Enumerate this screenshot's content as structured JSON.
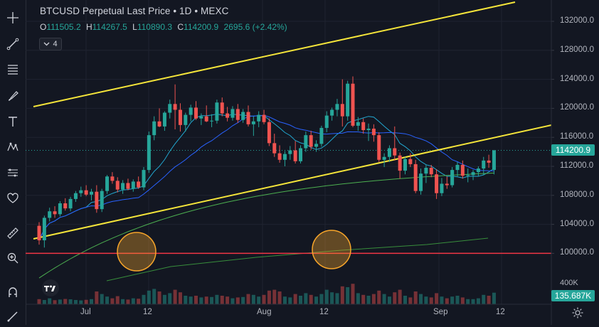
{
  "legend": {
    "title": "BTCUSD Perpetual Last Price • 1D • MEXC",
    "open_key": "O",
    "open": "111505.2",
    "high_key": "H",
    "high": "114267.5",
    "low_key": "L",
    "low": "110890.3",
    "close_key": "C",
    "close": "114200.9",
    "change": "2695.6 (+2.42%)",
    "indicators_count": "4"
  },
  "price_axis": {
    "labels": [
      "132000.0",
      "128000.0",
      "124000.0",
      "120000.0",
      "116000.0",
      "112000.0",
      "108000.0",
      "104000.0",
      "100000.0"
    ],
    "last_price": "114200.9",
    "volume_max": "400K",
    "volume_last": "135.687K"
  },
  "time_axis": {
    "labels": [
      "Jul",
      "12",
      "Aug",
      "12",
      "Sep",
      "12"
    ]
  },
  "toolbar": {
    "icons": [
      "crosshair-icon",
      "trend-line-icon",
      "fib-retracement-icon",
      "brush-icon",
      "text-icon",
      "pattern-icon",
      "prediction-icon",
      "heart-icon",
      "ruler-icon",
      "zoom-in-icon",
      "magnet-icon",
      "lock-icon"
    ]
  },
  "colors": {
    "background": "#131722",
    "up": "#26a69a",
    "down": "#ef5350",
    "channel": "#f5e53a",
    "support": "#f23645",
    "ma_fast": "#22a7d0",
    "ma_mid": "#2962ff",
    "ma_slow": "#4caf50",
    "ma_200": "#388e3c",
    "circle": "#f7a52a"
  },
  "chart_data": {
    "type": "candlestick",
    "symbol": "BTCUSD Perpetual",
    "interval": "1D",
    "exchange": "MEXC",
    "ylim": [
      96000,
      134000
    ],
    "candles": [
      [
        103800,
        104300,
        101200,
        101800
      ],
      [
        101800,
        105200,
        100800,
        104900
      ],
      [
        104900,
        106300,
        104400,
        105800
      ],
      [
        105800,
        106500,
        104900,
        105400
      ],
      [
        105400,
        107200,
        105100,
        106900
      ],
      [
        106900,
        107600,
        105900,
        106200
      ],
      [
        106200,
        107800,
        105800,
        107500
      ],
      [
        107500,
        108600,
        107100,
        108300
      ],
      [
        108300,
        109200,
        107800,
        108700
      ],
      [
        108700,
        109400,
        107900,
        108100
      ],
      [
        108100,
        108900,
        107300,
        108500
      ],
      [
        108500,
        109400,
        105600,
        106100
      ],
      [
        106100,
        108900,
        105700,
        108600
      ],
      [
        108600,
        110800,
        108200,
        110600
      ],
      [
        110600,
        111200,
        109600,
        110000
      ],
      [
        110000,
        110500,
        108400,
        108800
      ],
      [
        108800,
        110100,
        108200,
        109700
      ],
      [
        109700,
        110300,
        108700,
        108900
      ],
      [
        108900,
        110200,
        108500,
        109900
      ],
      [
        109900,
        110600,
        108900,
        109100
      ],
      [
        109100,
        111900,
        108700,
        111500
      ],
      [
        111500,
        116800,
        111100,
        116300
      ],
      [
        116300,
        118900,
        115600,
        118200
      ],
      [
        118200,
        120000,
        117400,
        117500
      ],
      [
        117500,
        119600,
        116900,
        119400
      ],
      [
        119400,
        121200,
        118600,
        120600
      ],
      [
        120600,
        123300,
        117100,
        119800
      ],
      [
        119800,
        120700,
        116800,
        117700
      ],
      [
        117700,
        119400,
        116800,
        119100
      ],
      [
        119100,
        120500,
        118200,
        120100
      ],
      [
        120100,
        121000,
        118400,
        118600
      ],
      [
        118600,
        119300,
        117700,
        118900
      ],
      [
        118900,
        120400,
        118100,
        118200
      ],
      [
        118200,
        119200,
        117400,
        118300
      ],
      [
        118300,
        121200,
        117900,
        120800
      ],
      [
        120800,
        121500,
        118900,
        119300
      ],
      [
        119300,
        120200,
        118200,
        118700
      ],
      [
        118700,
        120300,
        118300,
        119900
      ],
      [
        119900,
        120600,
        118000,
        118400
      ],
      [
        118400,
        119900,
        118000,
        119500
      ],
      [
        119500,
        120400,
        117500,
        117800
      ],
      [
        117800,
        118900,
        116200,
        118200
      ],
      [
        118200,
        119600,
        117400,
        119100
      ],
      [
        119100,
        119800,
        117800,
        118100
      ],
      [
        118100,
        118600,
        114800,
        115200
      ],
      [
        115200,
        116500,
        113300,
        113800
      ],
      [
        113800,
        114900,
        112500,
        112900
      ],
      [
        112900,
        114100,
        112000,
        113700
      ],
      [
        113700,
        114800,
        112900,
        114200
      ],
      [
        114200,
        115500,
        112400,
        112700
      ],
      [
        112700,
        114900,
        112400,
        114500
      ],
      [
        114500,
        116800,
        114000,
        116300
      ],
      [
        116300,
        116900,
        114300,
        114700
      ],
      [
        114700,
        115600,
        114000,
        115100
      ],
      [
        115100,
        117600,
        114700,
        117300
      ],
      [
        117300,
        119600,
        116700,
        119000
      ],
      [
        119000,
        120100,
        118300,
        119800
      ],
      [
        119800,
        121300,
        118900,
        120600
      ],
      [
        120600,
        124000,
        117500,
        118900
      ],
      [
        118900,
        123800,
        118300,
        123400
      ],
      [
        123400,
        124400,
        117400,
        117600
      ],
      [
        117600,
        118800,
        116900,
        118100
      ],
      [
        118100,
        118600,
        116500,
        117000
      ],
      [
        117000,
        117900,
        115500,
        117200
      ],
      [
        117200,
        117800,
        115400,
        116300
      ],
      [
        116300,
        116700,
        112600,
        112900
      ],
      [
        112900,
        113800,
        111900,
        113300
      ],
      [
        113300,
        114900,
        112600,
        114500
      ],
      [
        114500,
        117500,
        112800,
        113500
      ],
      [
        113500,
        113900,
        110300,
        111400
      ],
      [
        111400,
        113300,
        110900,
        113000
      ],
      [
        113000,
        113800,
        111900,
        112300
      ],
      [
        112300,
        112900,
        108300,
        108600
      ],
      [
        108600,
        111700,
        108100,
        111000
      ],
      [
        111000,
        112200,
        109700,
        111800
      ],
      [
        111800,
        112200,
        110500,
        110900
      ],
      [
        110900,
        111600,
        107500,
        108300
      ],
      [
        108300,
        110400,
        107900,
        109600
      ],
      [
        109600,
        110600,
        108900,
        109400
      ],
      [
        109400,
        111900,
        109100,
        111500
      ],
      [
        111500,
        112600,
        110600,
        112200
      ],
      [
        112200,
        112800,
        110300,
        110700
      ],
      [
        110700,
        111700,
        109800,
        110800
      ],
      [
        110800,
        111500,
        110100,
        111200
      ],
      [
        111200,
        112000,
        110600,
        111700
      ],
      [
        111700,
        113300,
        110800,
        112800
      ],
      [
        112800,
        113600,
        111800,
        112500
      ],
      [
        111505.2,
        114267.5,
        110890.3,
        114200.9
      ]
    ],
    "volume_k": [
      60,
      50,
      70,
      48,
      55,
      62,
      58,
      50,
      45,
      52,
      60,
      150,
      120,
      90,
      70,
      95,
      60,
      55,
      70,
      65,
      110,
      160,
      180,
      150,
      110,
      130,
      170,
      140,
      100,
      90,
      100,
      80,
      90,
      85,
      110,
      100,
      90,
      70,
      80,
      85,
      120,
      110,
      90,
      110,
      160,
      170,
      150,
      90,
      80,
      120,
      100,
      130,
      110,
      90,
      120,
      170,
      140,
      130,
      210,
      200,
      240,
      130,
      110,
      100,
      120,
      160,
      120,
      90,
      140,
      170,
      100,
      80,
      150,
      120,
      90,
      80,
      130,
      90,
      70,
      90,
      100,
      80,
      60,
      60,
      70,
      110,
      100,
      135.687
    ]
  }
}
